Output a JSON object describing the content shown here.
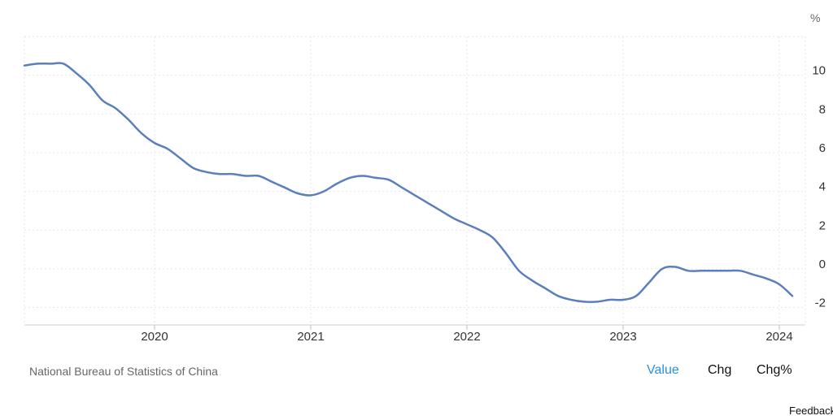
{
  "chart_data": {
    "type": "line",
    "unit": "%",
    "x_ticks": [
      "2020",
      "2021",
      "2022",
      "2023",
      "2024"
    ],
    "y_ticks": [
      "10",
      "8",
      "6",
      "4",
      "2",
      "0",
      "-2"
    ],
    "ylim": [
      -2.9,
      12
    ],
    "xlim": [
      "2019-03",
      "2024-03"
    ],
    "grid": true,
    "line_color": "#5b7fbd",
    "series": [
      {
        "x": [
          "2019-03",
          "2019-04",
          "2019-05",
          "2019-06",
          "2019-07",
          "2019-08",
          "2019-09",
          "2019-10",
          "2019-11",
          "2019-12",
          "2020-01",
          "2020-02",
          "2020-03",
          "2020-04",
          "2020-05",
          "2020-06",
          "2020-07",
          "2020-08",
          "2020-09",
          "2020-10",
          "2020-11",
          "2020-12",
          "2021-01",
          "2021-02",
          "2021-03",
          "2021-04",
          "2021-05",
          "2021-06",
          "2021-07",
          "2021-08",
          "2021-09",
          "2021-10",
          "2021-11",
          "2021-12",
          "2022-01",
          "2022-02",
          "2022-03",
          "2022-04",
          "2022-05",
          "2022-06",
          "2022-07",
          "2022-08",
          "2022-09",
          "2022-10",
          "2022-11",
          "2022-12",
          "2023-01",
          "2023-02",
          "2023-03",
          "2023-04",
          "2023-05",
          "2023-06",
          "2023-07",
          "2023-08",
          "2023-09",
          "2023-10",
          "2023-11",
          "2023-12",
          "2024-01",
          "2024-02"
        ],
        "values": [
          10.5,
          10.6,
          10.6,
          10.6,
          10.1,
          9.5,
          8.7,
          8.3,
          7.7,
          7.0,
          6.5,
          6.2,
          5.7,
          5.2,
          5.0,
          4.9,
          4.9,
          4.8,
          4.8,
          4.5,
          4.2,
          3.9,
          3.8,
          4.0,
          4.4,
          4.7,
          4.8,
          4.7,
          4.6,
          4.2,
          3.8,
          3.4,
          3.0,
          2.6,
          2.3,
          2.0,
          1.6,
          0.8,
          -0.1,
          -0.6,
          -1.0,
          -1.4,
          -1.6,
          -1.7,
          -1.7,
          -1.6,
          -1.6,
          -1.4,
          -0.7,
          0.0,
          0.1,
          -0.1,
          -0.1,
          -0.1,
          -0.1,
          -0.1,
          -0.3,
          -0.5,
          -0.8,
          -1.4
        ]
      }
    ]
  },
  "footer": {
    "source": "National Bureau of Statistics of China",
    "tabs": [
      "Value",
      "Chg",
      "Chg%"
    ],
    "active_tab": "Value",
    "feedback": "Feedback"
  },
  "colors": {
    "accent": "#2a8fe0",
    "line": "#5b7fbd"
  }
}
